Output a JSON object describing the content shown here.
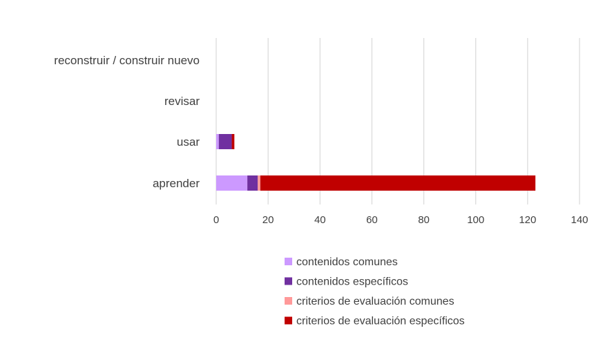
{
  "chart_data": {
    "type": "bar",
    "orientation": "horizontal",
    "stacked": true,
    "categories": [
      "aprender",
      "usar",
      "revisar",
      "reconstruir / construir nuevo"
    ],
    "series": [
      {
        "name": "contenidos comunes",
        "color": "#cc99ff",
        "values": [
          12,
          1,
          0,
          0
        ]
      },
      {
        "name": "contenidos específicos",
        "color": "#7030a0",
        "values": [
          4,
          5,
          0,
          0
        ]
      },
      {
        "name": "criterios de evaluación comunes",
        "color": "#ff9999",
        "values": [
          1,
          0,
          0,
          0
        ]
      },
      {
        "name": "criterios de evaluación específicos",
        "color": "#c00000",
        "values": [
          106,
          1,
          0,
          0
        ]
      }
    ],
    "xlim": [
      0,
      140
    ],
    "xticks": [
      "0",
      "20",
      "40",
      "60",
      "80",
      "100",
      "120",
      "140"
    ],
    "grid": "vertical",
    "legend_position": "bottom"
  }
}
